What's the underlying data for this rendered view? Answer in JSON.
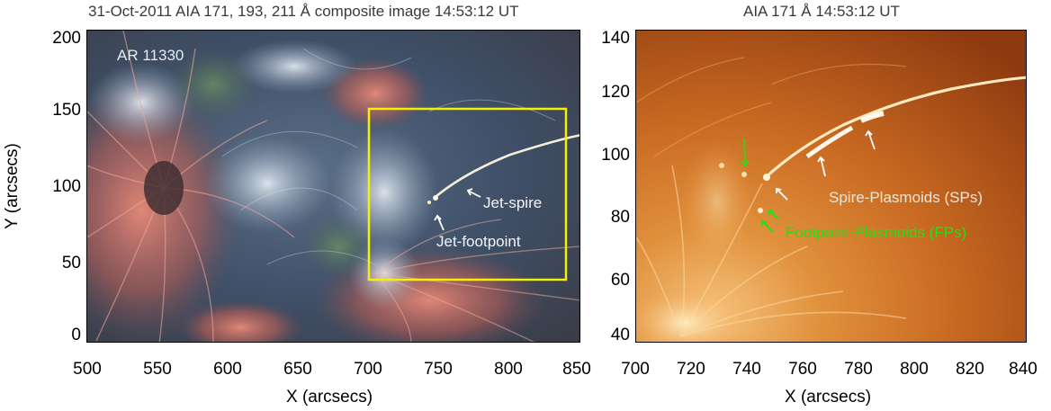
{
  "left_panel": {
    "title": "31-Oct-2011 AIA 171, 193, 211 Å composite image 14:53:12 UT",
    "region_label": "AR 11330",
    "annotations": {
      "spire": "Jet-spire",
      "footpoint": "Jet-footpoint"
    },
    "x_ticks": [
      "500",
      "550",
      "600",
      "650",
      "700",
      "750",
      "800",
      "850"
    ],
    "y_ticks": [
      "200",
      "150",
      "100",
      "50",
      "0"
    ],
    "xlabel": "X (arcsecs)",
    "ylabel": "Y (arcsecs)",
    "box_color": "#f5f000"
  },
  "right_panel": {
    "title": "AIA 171 Å 14:53:12 UT",
    "annotations": {
      "spire": "Spire-Plasmoids (SPs)",
      "footpoint": "Footpoint-Plasmoids (FPs)"
    },
    "x_ticks": [
      "700",
      "720",
      "740",
      "760",
      "780",
      "800",
      "820",
      "840"
    ],
    "y_ticks": [
      "140",
      "120",
      "100",
      "80",
      "60",
      "40"
    ],
    "xlabel": "X (arcsecs)",
    "spire_color": "#f0e6d6",
    "footpoint_color": "#22e014"
  }
}
